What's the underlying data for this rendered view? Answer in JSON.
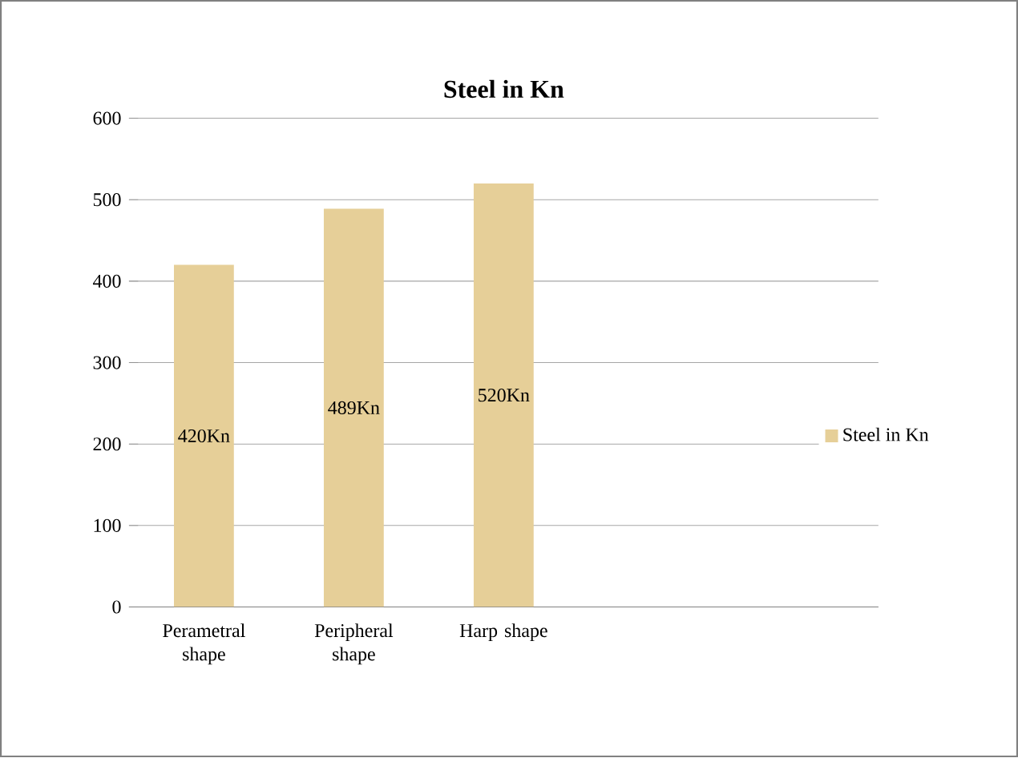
{
  "chart_data": {
    "type": "bar",
    "title": "Steel in Kn",
    "categories": [
      "Perametral shape",
      "Peripheral shape",
      "Harp shape",
      null,
      null
    ],
    "series": [
      {
        "name": "Steel in Kn",
        "color": "#e6cf98",
        "values": [
          420,
          489,
          520,
          null,
          null
        ],
        "value_labels": [
          "420Kn",
          "489Kn",
          "520Kn",
          null,
          null
        ]
      }
    ],
    "ylim": [
      0,
      600
    ],
    "yticks": [
      0,
      100,
      200,
      300,
      400,
      500,
      600
    ],
    "grid": "y",
    "legend": "right"
  }
}
